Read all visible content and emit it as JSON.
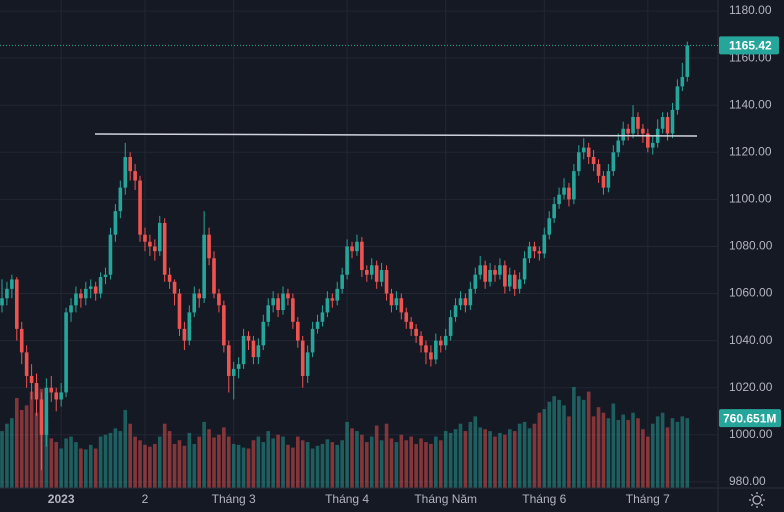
{
  "chart_data": {
    "type": "candlestick",
    "up_color": "#26a69a",
    "down_color": "#ef5350",
    "ylim": [
      977.4,
      1184.7
    ],
    "yticks": [
      {
        "value": 980,
        "label": "980.00"
      },
      {
        "value": 1000,
        "label": "1000.00"
      },
      {
        "value": 1020,
        "label": "1020.00"
      },
      {
        "value": 1040,
        "label": "1040.00"
      },
      {
        "value": 1060,
        "label": "1060.00"
      },
      {
        "value": 1080,
        "label": "1080.00"
      },
      {
        "value": 1100,
        "label": "1100.00"
      },
      {
        "value": 1120,
        "label": "1120.00"
      },
      {
        "value": 1140,
        "label": "1140.00"
      },
      {
        "value": 1160,
        "label": "1160.00"
      },
      {
        "value": 1180,
        "label": "1180.00"
      }
    ],
    "xticks": [
      {
        "value": 12,
        "label": "2023"
      },
      {
        "value": 29,
        "label": "2"
      },
      {
        "value": 47,
        "label": "Tháng 3"
      },
      {
        "value": 70,
        "label": "Tháng 4"
      },
      {
        "value": 90,
        "label": "Tháng Năm"
      },
      {
        "value": 110,
        "label": "Tháng 6"
      },
      {
        "value": 131,
        "label": "Tháng 7"
      }
    ],
    "grid": true,
    "ohlc": [
      [
        1055,
        1066,
        1052,
        1058
      ],
      [
        1058,
        1065,
        1055,
        1062
      ],
      [
        1062,
        1068,
        1058,
        1066
      ],
      [
        1066,
        1067,
        1040,
        1045
      ],
      [
        1045,
        1048,
        1030,
        1035
      ],
      [
        1035,
        1038,
        1020,
        1025
      ],
      [
        1025,
        1030,
        1015,
        1022
      ],
      [
        1022,
        1026,
        1008,
        1015
      ],
      [
        1015,
        1018,
        985,
        1000
      ],
      [
        1000,
        1024,
        995,
        1020
      ],
      [
        1020,
        1025,
        1014,
        1018
      ],
      [
        1018,
        1020,
        1010,
        1015
      ],
      [
        1015,
        1022,
        1012,
        1018
      ],
      [
        1018,
        1054,
        1016,
        1052
      ],
      [
        1052,
        1058,
        1048,
        1055
      ],
      [
        1055,
        1063,
        1052,
        1060
      ],
      [
        1060,
        1062,
        1054,
        1058
      ],
      [
        1058,
        1065,
        1055,
        1062
      ],
      [
        1062,
        1066,
        1058,
        1063
      ],
      [
        1063,
        1065,
        1057,
        1060
      ],
      [
        1060,
        1069,
        1058,
        1067
      ],
      [
        1067,
        1071,
        1064,
        1068
      ],
      [
        1068,
        1088,
        1066,
        1085
      ],
      [
        1085,
        1098,
        1082,
        1095
      ],
      [
        1095,
        1108,
        1092,
        1105
      ],
      [
        1105,
        1124,
        1102,
        1118
      ],
      [
        1118,
        1120,
        1108,
        1112
      ],
      [
        1112,
        1115,
        1104,
        1108
      ],
      [
        1108,
        1110,
        1082,
        1085
      ],
      [
        1085,
        1088,
        1078,
        1082
      ],
      [
        1082,
        1085,
        1076,
        1080
      ],
      [
        1080,
        1083,
        1074,
        1078
      ],
      [
        1078,
        1093,
        1076,
        1090
      ],
      [
        1090,
        1092,
        1065,
        1068
      ],
      [
        1068,
        1071,
        1062,
        1065
      ],
      [
        1065,
        1066,
        1055,
        1060
      ],
      [
        1060,
        1062,
        1042,
        1045
      ],
      [
        1045,
        1048,
        1036,
        1040
      ],
      [
        1040,
        1055,
        1038,
        1052
      ],
      [
        1052,
        1063,
        1050,
        1060
      ],
      [
        1060,
        1062,
        1054,
        1058
      ],
      [
        1058,
        1095,
        1056,
        1085
      ],
      [
        1085,
        1088,
        1072,
        1075
      ],
      [
        1075,
        1078,
        1058,
        1060
      ],
      [
        1060,
        1062,
        1052,
        1055
      ],
      [
        1055,
        1057,
        1035,
        1038
      ],
      [
        1038,
        1040,
        1018,
        1025
      ],
      [
        1025,
        1031,
        1015,
        1028
      ],
      [
        1028,
        1033,
        1024,
        1030
      ],
      [
        1030,
        1045,
        1028,
        1042
      ],
      [
        1042,
        1044,
        1036,
        1040
      ],
      [
        1040,
        1042,
        1030,
        1033
      ],
      [
        1033,
        1041,
        1030,
        1038
      ],
      [
        1038,
        1051,
        1036,
        1048
      ],
      [
        1048,
        1058,
        1046,
        1055
      ],
      [
        1055,
        1061,
        1052,
        1058
      ],
      [
        1058,
        1060,
        1050,
        1053
      ],
      [
        1053,
        1063,
        1051,
        1060
      ],
      [
        1060,
        1062,
        1055,
        1058
      ],
      [
        1058,
        1060,
        1045,
        1048
      ],
      [
        1048,
        1050,
        1037,
        1040
      ],
      [
        1040,
        1042,
        1020,
        1025
      ],
      [
        1025,
        1038,
        1022,
        1035
      ],
      [
        1035,
        1048,
        1033,
        1045
      ],
      [
        1045,
        1051,
        1043,
        1048
      ],
      [
        1048,
        1055,
        1046,
        1052
      ],
      [
        1052,
        1061,
        1050,
        1058
      ],
      [
        1058,
        1060,
        1054,
        1057
      ],
      [
        1057,
        1065,
        1055,
        1062
      ],
      [
        1062,
        1071,
        1060,
        1068
      ],
      [
        1068,
        1083,
        1066,
        1080
      ],
      [
        1080,
        1082,
        1075,
        1078
      ],
      [
        1078,
        1085,
        1076,
        1082
      ],
      [
        1082,
        1084,
        1067,
        1070
      ],
      [
        1070,
        1072,
        1065,
        1068
      ],
      [
        1068,
        1075,
        1066,
        1072
      ],
      [
        1072,
        1074,
        1062,
        1065
      ],
      [
        1065,
        1073,
        1063,
        1070
      ],
      [
        1070,
        1072,
        1057,
        1060
      ],
      [
        1060,
        1062,
        1052,
        1055
      ],
      [
        1055,
        1061,
        1053,
        1058
      ],
      [
        1058,
        1060,
        1049,
        1052
      ],
      [
        1052,
        1054,
        1045,
        1048
      ],
      [
        1048,
        1050,
        1042,
        1045
      ],
      [
        1045,
        1047,
        1039,
        1042
      ],
      [
        1042,
        1044,
        1035,
        1038
      ],
      [
        1038,
        1040,
        1030,
        1035
      ],
      [
        1035,
        1038,
        1029,
        1032
      ],
      [
        1032,
        1043,
        1030,
        1040
      ],
      [
        1040,
        1042,
        1035,
        1038
      ],
      [
        1038,
        1045,
        1036,
        1042
      ],
      [
        1042,
        1053,
        1040,
        1050
      ],
      [
        1050,
        1058,
        1048,
        1055
      ],
      [
        1055,
        1061,
        1053,
        1058
      ],
      [
        1058,
        1060,
        1052,
        1055
      ],
      [
        1055,
        1065,
        1053,
        1062
      ],
      [
        1062,
        1071,
        1060,
        1068
      ],
      [
        1068,
        1076,
        1066,
        1072
      ],
      [
        1072,
        1074,
        1062,
        1065
      ],
      [
        1065,
        1073,
        1063,
        1070
      ],
      [
        1070,
        1072,
        1065,
        1068
      ],
      [
        1068,
        1075,
        1066,
        1072
      ],
      [
        1072,
        1074,
        1060,
        1063
      ],
      [
        1063,
        1071,
        1061,
        1068
      ],
      [
        1068,
        1070,
        1059,
        1062
      ],
      [
        1062,
        1069,
        1060,
        1066
      ],
      [
        1066,
        1078,
        1064,
        1075
      ],
      [
        1075,
        1082,
        1073,
        1080
      ],
      [
        1080,
        1082,
        1075,
        1078
      ],
      [
        1078,
        1080,
        1074,
        1077
      ],
      [
        1077,
        1088,
        1075,
        1085
      ],
      [
        1085,
        1095,
        1083,
        1092
      ],
      [
        1092,
        1101,
        1090,
        1098
      ],
      [
        1098,
        1105,
        1096,
        1102
      ],
      [
        1102,
        1109,
        1100,
        1105
      ],
      [
        1105,
        1107,
        1097,
        1100
      ],
      [
        1100,
        1115,
        1098,
        1112
      ],
      [
        1112,
        1123,
        1110,
        1120
      ],
      [
        1120,
        1126,
        1117,
        1122
      ],
      [
        1122,
        1124,
        1115,
        1118
      ],
      [
        1118,
        1121,
        1112,
        1115
      ],
      [
        1115,
        1117,
        1107,
        1110
      ],
      [
        1110,
        1112,
        1102,
        1105
      ],
      [
        1105,
        1115,
        1103,
        1112
      ],
      [
        1112,
        1123,
        1110,
        1120
      ],
      [
        1120,
        1128,
        1118,
        1125
      ],
      [
        1125,
        1133,
        1123,
        1130
      ],
      [
        1130,
        1132,
        1125,
        1128
      ],
      [
        1128,
        1140,
        1126,
        1135
      ],
      [
        1135,
        1137,
        1127,
        1130
      ],
      [
        1130,
        1132,
        1124,
        1128
      ],
      [
        1128,
        1130,
        1120,
        1122
      ],
      [
        1122,
        1127,
        1119,
        1124
      ],
      [
        1124,
        1134,
        1122,
        1130
      ],
      [
        1130,
        1137,
        1128,
        1135
      ],
      [
        1135,
        1137,
        1125,
        1128
      ],
      [
        1128,
        1141,
        1126,
        1138
      ],
      [
        1138,
        1151,
        1136,
        1148
      ],
      [
        1148,
        1158,
        1146,
        1152
      ],
      [
        1152,
        1167,
        1150,
        1165.42
      ]
    ],
    "volume": [
      620,
      700,
      760,
      980,
      850,
      900,
      1050,
      820,
      1080,
      760,
      540,
      500,
      430,
      540,
      560,
      500,
      430,
      420,
      470,
      430,
      560,
      580,
      600,
      650,
      620,
      850,
      700,
      560,
      520,
      470,
      450,
      480,
      560,
      700,
      620,
      480,
      520,
      460,
      600,
      480,
      560,
      720,
      640,
      550,
      580,
      660,
      560,
      480,
      470,
      440,
      430,
      520,
      560,
      500,
      620,
      540,
      580,
      560,
      470,
      440,
      560,
      520,
      500,
      430,
      460,
      480,
      530,
      500,
      470,
      520,
      720,
      650,
      620,
      580,
      500,
      560,
      680,
      520,
      700,
      540,
      500,
      580,
      520,
      560,
      480,
      540,
      500,
      480,
      560,
      520,
      620,
      600,
      640,
      700,
      620,
      720,
      780,
      660,
      640,
      620,
      560,
      600,
      580,
      640,
      620,
      700,
      720,
      650,
      700,
      820,
      860,
      940,
      1000,
      960,
      900,
      780,
      1100,
      1000,
      960,
      1050,
      780,
      880,
      820,
      760,
      920,
      740,
      800,
      740,
      820,
      760,
      640,
      560,
      700,
      780,
      820,
      660,
      760,
      720,
      780,
      760.651
    ],
    "volume_value_label": "760.651M"
  }
}
